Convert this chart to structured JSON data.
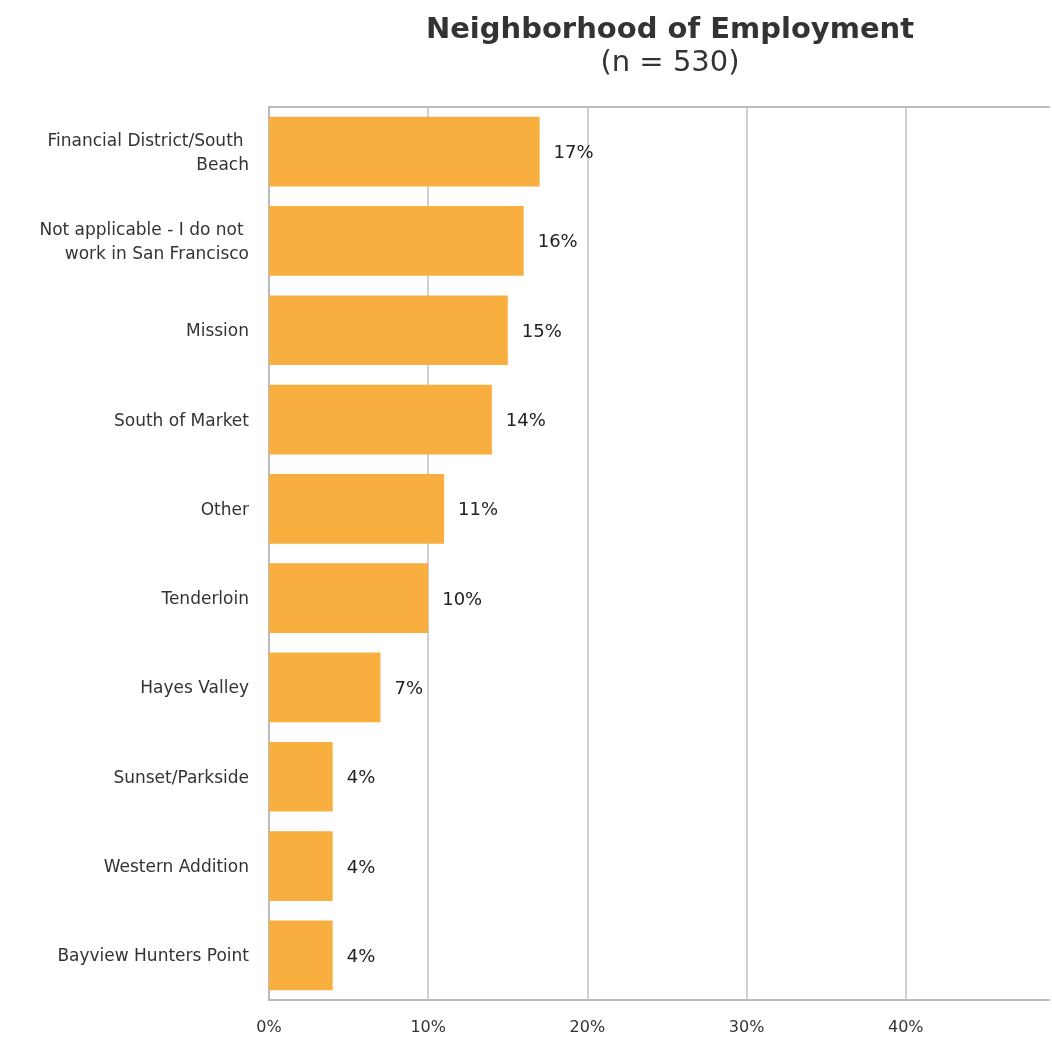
{
  "chart_data": {
    "type": "bar",
    "orientation": "horizontal",
    "title": "Neighborhood of Employment",
    "subtitle": "(n = 530)",
    "categories": [
      "Financial District/South Beach",
      "Not applicable - I do not work in San Francisco",
      "Mission",
      "South of Market",
      "Other",
      "Tenderloin",
      "Hayes Valley",
      "Sunset/Parkside",
      "Western Addition",
      "Bayview Hunters Point"
    ],
    "values": [
      17,
      16,
      15,
      14,
      11,
      10,
      7,
      4,
      4,
      4
    ],
    "value_labels": [
      "17%",
      "16%",
      "15%",
      "14%",
      "11%",
      "10%",
      "7%",
      "4%",
      "4%",
      "4%"
    ],
    "color": "#f9ae40",
    "xlim": [
      0,
      49
    ],
    "xticks": [
      {
        "value": 0,
        "label": "0%"
      },
      {
        "value": 10,
        "label": "10%"
      },
      {
        "value": 20,
        "label": "20%"
      },
      {
        "value": 30,
        "label": "30%"
      },
      {
        "value": 40,
        "label": "40%"
      }
    ],
    "grid": "x"
  }
}
